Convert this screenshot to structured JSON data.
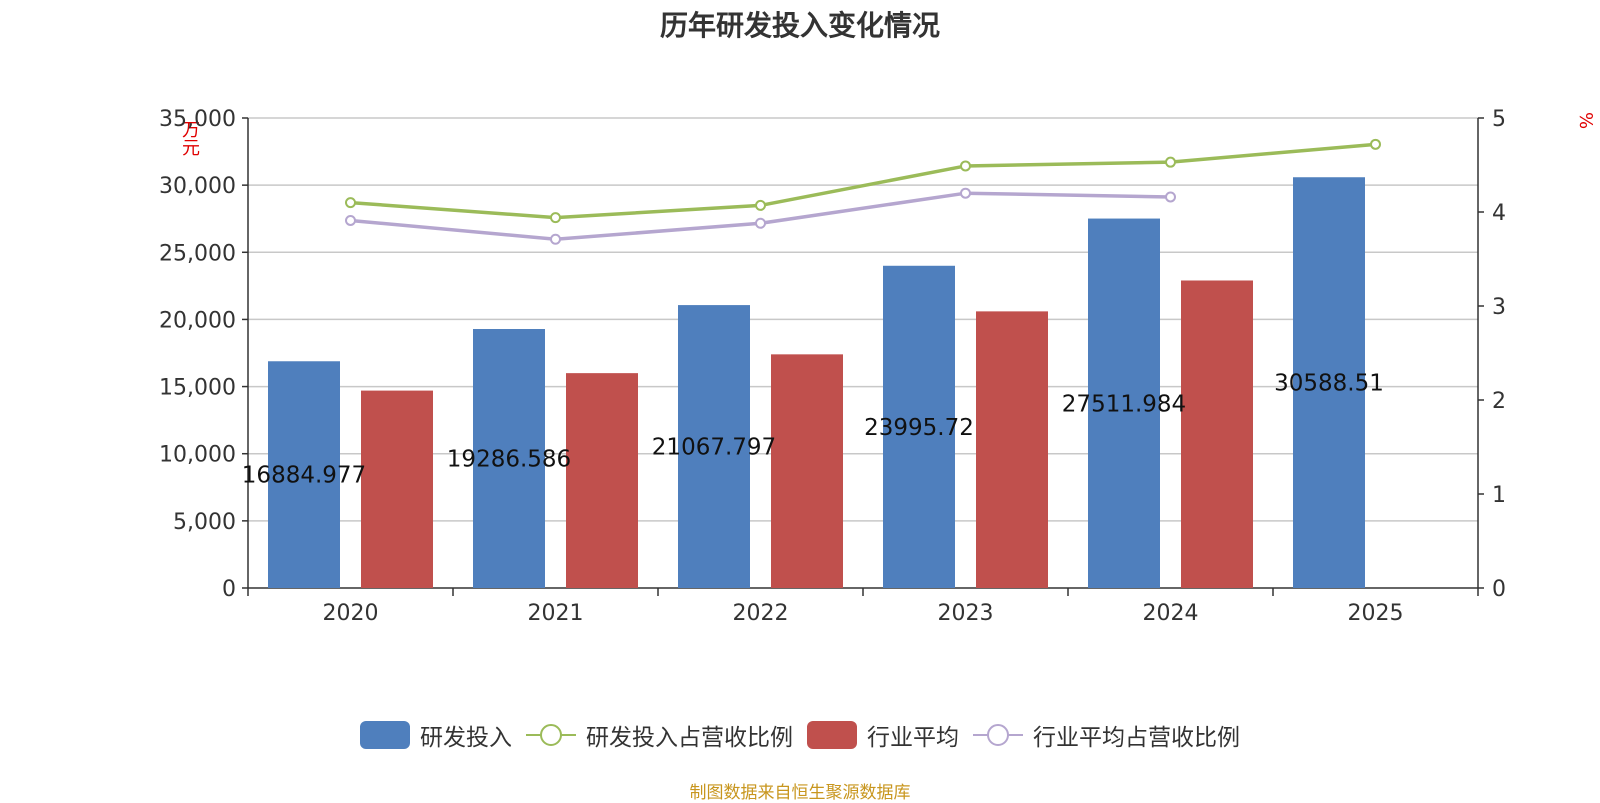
{
  "title": "历年研发投入变化情况",
  "source_note": "制图数据来自恒生聚源数据库",
  "colors": {
    "rd_bar": "#4f7fbd",
    "industry_bar": "#c0504d",
    "rd_ratio_line": "#9bbb59",
    "industry_ratio_line": "#b5a6cf"
  },
  "chart_data": {
    "type": "bar",
    "title": "历年研发投入变化情况",
    "categories": [
      "2020",
      "2021",
      "2022",
      "2023",
      "2024",
      "2025"
    ],
    "y_left": {
      "unit": "万元",
      "ylim": [
        0,
        35000
      ],
      "ticks": [
        "0",
        "5,000",
        "10,000",
        "15,000",
        "20,000",
        "25,000",
        "30,000",
        "35,000"
      ]
    },
    "y_right": {
      "unit": "%",
      "ylim": [
        0,
        5
      ],
      "ticks": [
        "0",
        "1",
        "2",
        "3",
        "4",
        "5"
      ]
    },
    "grid": true,
    "legend_position": "bottom",
    "series": [
      {
        "name": "研发投入",
        "type": "bar",
        "axis": "left",
        "values": [
          16884.977,
          19286.586,
          21067.797,
          23995.72,
          27511.984,
          30588.51
        ],
        "labels": [
          "16884.977",
          "19286.586",
          "21067.797",
          "23995.72",
          "27511.984",
          "30588.51"
        ]
      },
      {
        "name": "研发投入占营收比例",
        "type": "line",
        "axis": "right",
        "values": [
          4.1,
          3.94,
          4.07,
          4.49,
          4.53,
          4.72
        ]
      },
      {
        "name": "行业平均",
        "type": "bar",
        "axis": "left",
        "values": [
          14700,
          16000,
          17400,
          20600,
          22900,
          null
        ]
      },
      {
        "name": "行业平均占营收比例",
        "type": "line",
        "axis": "right",
        "values": [
          3.91,
          3.71,
          3.88,
          4.2,
          4.16,
          null
        ]
      }
    ]
  },
  "legend": [
    {
      "label": "研发投入",
      "kind": "bar"
    },
    {
      "label": "研发投入占营收比例",
      "kind": "line"
    },
    {
      "label": "行业平均",
      "kind": "bar"
    },
    {
      "label": "行业平均占营收比例",
      "kind": "line"
    }
  ]
}
